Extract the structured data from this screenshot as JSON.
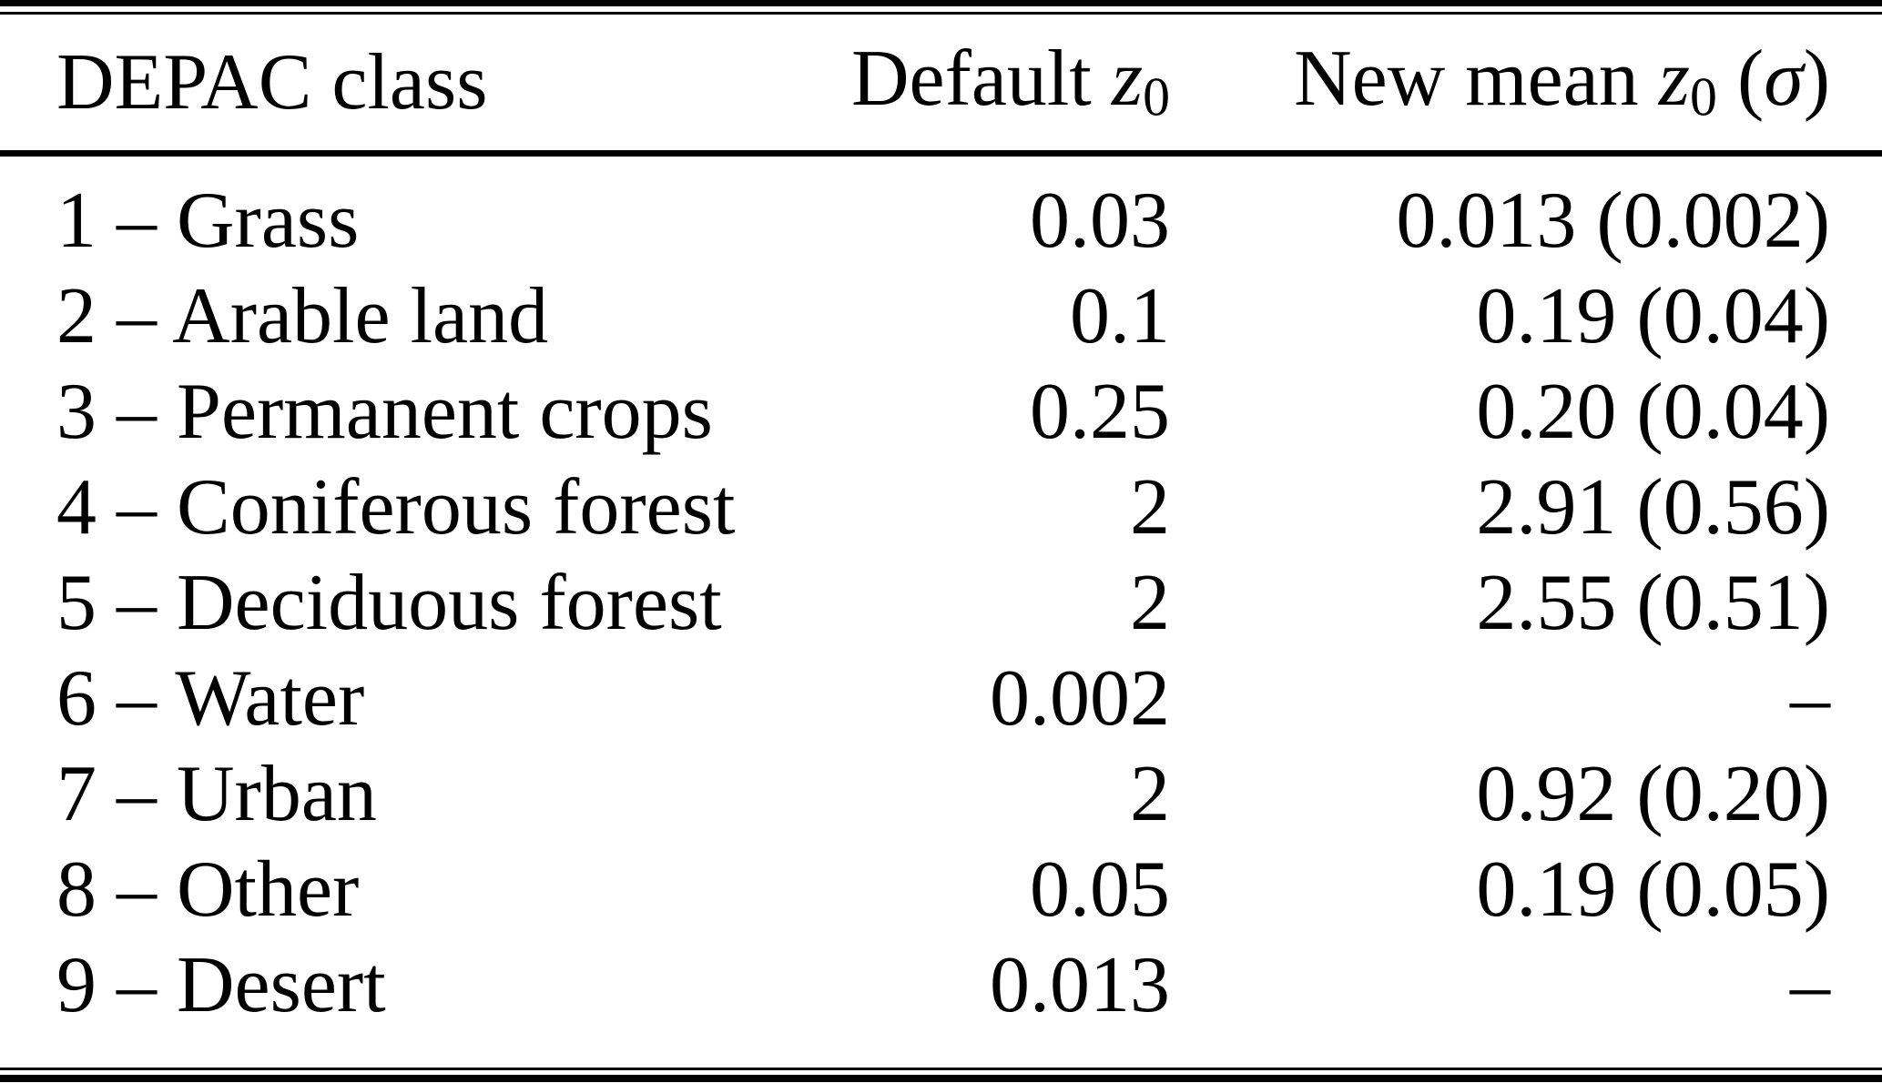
{
  "colors": {
    "text": "#000000",
    "background": "#ffffff",
    "rule": "#000000"
  },
  "table": {
    "columns": [
      {
        "id": "class",
        "name": "depac-class",
        "align": "left",
        "header_tokens": [
          {
            "t": "DEPAC class"
          }
        ]
      },
      {
        "id": "default_z0",
        "name": "default-z0",
        "align": "right",
        "header_tokens": [
          {
            "t": "Default "
          },
          {
            "t": "z",
            "style": "i"
          },
          {
            "t": "0",
            "style": "sub"
          }
        ]
      },
      {
        "id": "new_mean_z0",
        "name": "new-mean-z0",
        "align": "right",
        "header_tokens": [
          {
            "t": "New mean "
          },
          {
            "t": "z",
            "style": "i"
          },
          {
            "t": "0",
            "style": "sub"
          },
          {
            "t": " ("
          },
          {
            "t": "σ",
            "style": "i"
          },
          {
            "t": ")"
          }
        ]
      }
    ],
    "rows": [
      {
        "class": "1 – Grass",
        "default_z0": "0.03",
        "new_mean_z0": "0.013 (0.002)"
      },
      {
        "class": "2 – Arable land",
        "default_z0": "0.1",
        "new_mean_z0": "0.19 (0.04)"
      },
      {
        "class": "3 – Permanent crops",
        "default_z0": "0.25",
        "new_mean_z0": "0.20 (0.04)"
      },
      {
        "class": "4 – Coniferous forest",
        "default_z0": "2",
        "new_mean_z0": "2.91 (0.56)"
      },
      {
        "class": "5 – Deciduous forest",
        "default_z0": "2",
        "new_mean_z0": "2.55 (0.51)"
      },
      {
        "class": "6 – Water",
        "default_z0": "0.002",
        "new_mean_z0": "–"
      },
      {
        "class": "7 – Urban",
        "default_z0": "2",
        "new_mean_z0": "0.92 (0.20)"
      },
      {
        "class": "8 – Other",
        "default_z0": "0.05",
        "new_mean_z0": "0.19 (0.05)"
      },
      {
        "class": "9 – Desert",
        "default_z0": "0.013",
        "new_mean_z0": "–"
      }
    ]
  }
}
